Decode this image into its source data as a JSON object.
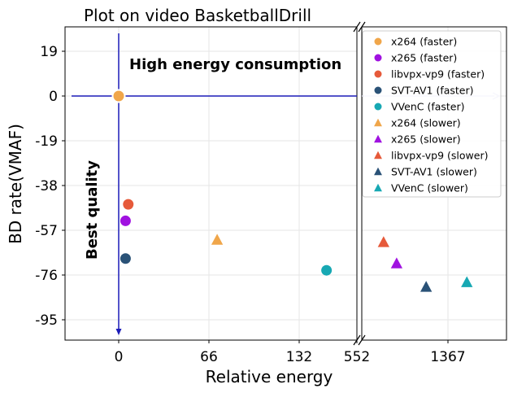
{
  "chart_data": {
    "type": "scatter",
    "title": "Plot on video BasketballDrill",
    "xlabel": "Relative energy",
    "ylabel": "BD rate(VMAF)",
    "x_tick_labels": [
      "0",
      "66",
      "132",
      "552",
      "1367"
    ],
    "y_ticks": [
      19,
      0,
      -19,
      -38,
      -57,
      -76,
      -95
    ],
    "ylim": [
      -101,
      27
    ],
    "broken_x_axis": true,
    "grid": true,
    "legend_position": "upper-right",
    "annotations": {
      "top": "High energy consumption",
      "left": "Best quality"
    },
    "series": [
      {
        "name": "x264 (faster)",
        "marker": "circle",
        "color": "#F0A64A",
        "panel": "left",
        "x": 0,
        "y": 0
      },
      {
        "name": "x265 (faster)",
        "marker": "circle",
        "color": "#A012E0",
        "panel": "left",
        "x": 5,
        "y": -53
      },
      {
        "name": "libvpx-vp9 (faster)",
        "marker": "circle",
        "color": "#E65A3A",
        "panel": "left",
        "x": 7,
        "y": -46
      },
      {
        "name": "SVT-AV1 (faster)",
        "marker": "circle",
        "color": "#2A5277",
        "panel": "left",
        "x": 5,
        "y": -69
      },
      {
        "name": "VVenC (faster)",
        "marker": "circle",
        "color": "#17A8B3",
        "panel": "left",
        "x": 152,
        "y": -74
      },
      {
        "name": "x264 (slower)",
        "marker": "triangle",
        "color": "#F0A64A",
        "panel": "left",
        "x": 72,
        "y": -61
      },
      {
        "name": "x265 (slower)",
        "marker": "triangle",
        "color": "#A012E0",
        "panel": "right",
        "x": 820,
        "y": -71
      },
      {
        "name": "libvpx-vp9 (slower)",
        "marker": "triangle",
        "color": "#E65A3A",
        "panel": "right",
        "x": 720,
        "y": -62
      },
      {
        "name": "SVT-AV1 (slower)",
        "marker": "triangle",
        "color": "#2A5277",
        "panel": "right",
        "x": 1100,
        "y": -81
      },
      {
        "name": "VVenC (slower)",
        "marker": "triangle",
        "color": "#17A8B3",
        "panel": "right",
        "x": 1650,
        "y": -79
      }
    ]
  }
}
